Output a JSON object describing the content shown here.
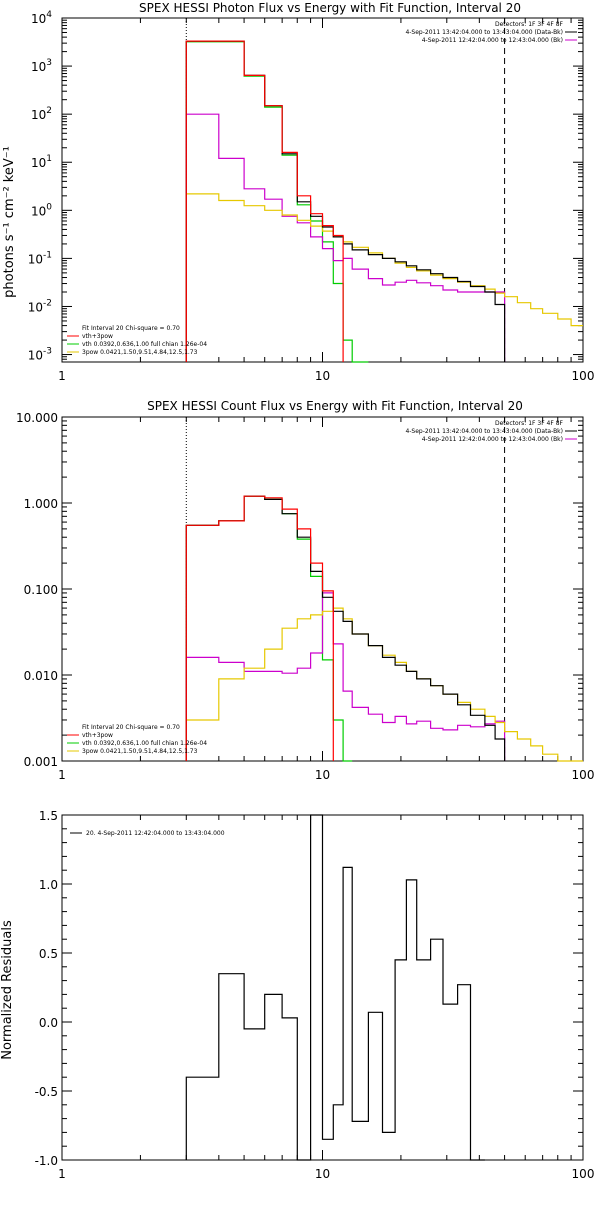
{
  "colors": {
    "background": "#ffffff",
    "axes": "#000000",
    "red": "#ff0000",
    "green": "#00cc00",
    "magenta": "#cc00cc",
    "yellow": "#e6c800",
    "black": "#000000"
  },
  "chart_data": [
    {
      "id": "photon",
      "type": "line",
      "title": "SPEX HESSI Photon Flux vs Energy with Fit Function, Interval 20",
      "xlabel": "",
      "ylabel": "photons s⁻¹ cm⁻² keV⁻¹",
      "xscale": "log",
      "yscale": "log",
      "xlim": [
        1,
        100
      ],
      "ylim": [
        0.0007,
        10000
      ],
      "xticks": [
        {
          "v": 1,
          "label": "1"
        },
        {
          "v": 10,
          "label": "10"
        },
        {
          "v": 100,
          "label": "100"
        }
      ],
      "yticks": [
        {
          "v": 0.001,
          "base": "10",
          "exp": "-3"
        },
        {
          "v": 0.01,
          "base": "10",
          "exp": "-2"
        },
        {
          "v": 0.1,
          "base": "10",
          "exp": "-1"
        },
        {
          "v": 1,
          "base": "10",
          "exp": "0"
        },
        {
          "v": 10,
          "base": "10",
          "exp": "1"
        },
        {
          "v": 100,
          "base": "10",
          "exp": "2"
        },
        {
          "v": 1000,
          "base": "10",
          "exp": "3"
        },
        {
          "v": 10000,
          "base": "10",
          "exp": "4"
        }
      ],
      "vlines": [
        {
          "x": 3.0,
          "style": "dotted"
        },
        {
          "x": 50.0,
          "style": "dashed"
        }
      ],
      "legend_tr": [
        {
          "text": "Detectors: 1F 3F 4F 8F",
          "color": ""
        },
        {
          "text": "4-Sep-2011 13:42:04.000 to 13:43:04.000 (Data-Bk)",
          "color": "#000000"
        },
        {
          "text": "4-Sep-2011 12:42:04.000 to 12:43:04.000 (Bk)",
          "color": "#cc00cc"
        }
      ],
      "legend_bl": [
        {
          "text": "Fit Interval 20   Chi-square = 0.70",
          "color": ""
        },
        {
          "text": "vth+3pow",
          "color": "#ff0000"
        },
        {
          "text": "vth 0.0392,0.636,1.00   full chian 1.26e-04",
          "color": "#00cc00"
        },
        {
          "text": "3pow 0.0421,1.50,9.51,4.84,12.5,1.73",
          "color": "#e6c800"
        }
      ],
      "edges": [
        3,
        4,
        5,
        6,
        7,
        8,
        9,
        10,
        11,
        12,
        13,
        15,
        17,
        19,
        21,
        23,
        26,
        29,
        33,
        37,
        42,
        46,
        50,
        56,
        63,
        70,
        80,
        90,
        100
      ],
      "series": [
        {
          "color": "#00cc00",
          "values": [
            3200,
            3200,
            620,
            140,
            14,
            1.3,
            0.6,
            0.22,
            0.03,
            0.002,
            0.0007
          ]
        },
        {
          "color": "#cc00cc",
          "values": [
            100,
            12,
            2.8,
            1.7,
            0.75,
            0.55,
            0.28,
            0.16,
            0.09,
            0.1,
            0.06,
            0.038,
            0.028,
            0.032,
            0.035,
            0.031,
            0.027,
            0.022,
            0.02,
            0.02,
            0.02,
            0.02
          ]
        },
        {
          "color": "#e6c800",
          "values": [
            2.2,
            1.6,
            1.25,
            1.0,
            0.8,
            0.62,
            0.47,
            0.37,
            0.28,
            0.22,
            0.17,
            0.13,
            0.1,
            0.08,
            0.065,
            0.055,
            0.045,
            0.038,
            0.032,
            0.027,
            0.023,
            0.019,
            0.016,
            0.012,
            0.009,
            0.0072,
            0.0055,
            0.004
          ]
        },
        {
          "color": "#000000",
          "values": [
            3300,
            3300,
            640,
            150,
            15,
            1.5,
            0.75,
            0.45,
            0.28,
            0.2,
            0.15,
            0.12,
            0.1,
            0.085,
            0.07,
            0.058,
            0.048,
            0.04,
            0.033,
            0.026,
            0.02,
            0.011
          ]
        },
        {
          "color": "#ff0000",
          "values": [
            3300,
            3300,
            640,
            150,
            16,
            2.0,
            0.85,
            0.48,
            0.3
          ]
        }
      ]
    },
    {
      "id": "count",
      "type": "line",
      "title": "SPEX HESSI Count Flux vs Energy with Fit Function, Interval 20",
      "xlabel": "",
      "ylabel": "",
      "xscale": "log",
      "yscale": "log",
      "xlim": [
        1,
        100
      ],
      "ylim": [
        0.001,
        10
      ],
      "xticks": [
        {
          "v": 1,
          "label": "1"
        },
        {
          "v": 10,
          "label": "10"
        },
        {
          "v": 100,
          "label": "100"
        }
      ],
      "yticks": [
        {
          "v": 0.001,
          "label": "0.001"
        },
        {
          "v": 0.01,
          "label": "0.010"
        },
        {
          "v": 0.1,
          "label": "0.100"
        },
        {
          "v": 1,
          "label": "1.000"
        },
        {
          "v": 10,
          "label": "10.000"
        }
      ],
      "vlines": [
        {
          "x": 3.0,
          "style": "dotted"
        },
        {
          "x": 50.0,
          "style": "dashed"
        }
      ],
      "legend_tr": [
        {
          "text": "Detectors: 1F 3F 4F 8F",
          "color": ""
        },
        {
          "text": "4-Sep-2011 13:42:04.000 to 13:43:04.000 (Data-Bk)",
          "color": "#000000"
        },
        {
          "text": "4-Sep-2011 12:42:04.000 to 12:43:04.000 (Bk)",
          "color": "#cc00cc"
        }
      ],
      "legend_bl": [
        {
          "text": "Fit Interval 20   Chi-square = 0.70",
          "color": ""
        },
        {
          "text": "vth+3pow",
          "color": "#ff0000"
        },
        {
          "text": "vth 0.0392,0.636,1.00   full chian 1.26e-04",
          "color": "#00cc00"
        },
        {
          "text": "3pow 0.0421,1.50,9.51,4.84,12.5,1.73",
          "color": "#e6c800"
        }
      ],
      "edges": [
        3,
        4,
        5,
        6,
        7,
        8,
        9,
        10,
        11,
        12,
        13,
        15,
        17,
        19,
        21,
        23,
        26,
        29,
        33,
        37,
        42,
        46,
        50,
        56,
        63,
        70,
        80,
        90,
        100
      ],
      "series": [
        {
          "color": "#00cc00",
          "values": [
            0.55,
            0.62,
            1.2,
            1.1,
            0.75,
            0.38,
            0.14,
            0.015,
            0.003,
            0.0009
          ]
        },
        {
          "color": "#cc00cc",
          "values": [
            0.016,
            0.014,
            0.011,
            0.011,
            0.0105,
            0.012,
            0.018,
            0.09,
            0.023,
            0.0065,
            0.0042,
            0.0035,
            0.0028,
            0.0033,
            0.0027,
            0.0029,
            0.0024,
            0.0023,
            0.0026,
            0.0025,
            0.0027,
            0.0029
          ]
        },
        {
          "color": "#e6c800",
          "values": [
            0.003,
            0.009,
            0.012,
            0.02,
            0.035,
            0.045,
            0.05,
            0.055,
            0.06,
            0.045,
            0.03,
            0.022,
            0.017,
            0.014,
            0.011,
            0.009,
            0.0075,
            0.006,
            0.0048,
            0.004,
            0.0033,
            0.0028,
            0.0022,
            0.0018,
            0.0015,
            0.0012,
            0.0009,
            0.0007
          ]
        },
        {
          "color": "#000000",
          "values": [
            0.55,
            0.62,
            1.2,
            1.1,
            0.75,
            0.4,
            0.16,
            0.08,
            0.055,
            0.042,
            0.03,
            0.022,
            0.016,
            0.013,
            0.011,
            0.009,
            0.0075,
            0.006,
            0.0045,
            0.0034,
            0.0026,
            0.0018
          ]
        },
        {
          "color": "#ff0000",
          "values": [
            0.55,
            0.62,
            1.2,
            1.15,
            0.85,
            0.5,
            0.2,
            0.095
          ]
        }
      ]
    },
    {
      "id": "resid",
      "type": "line",
      "title": "",
      "xlabel": "",
      "ylabel": "Normalized Residuals",
      "xscale": "log",
      "yscale": "linear",
      "xlim": [
        1,
        100
      ],
      "ylim": [
        -1.0,
        1.5
      ],
      "xticks": [
        {
          "v": 1,
          "label": "1"
        },
        {
          "v": 10,
          "label": "10"
        },
        {
          "v": 100,
          "label": "100"
        }
      ],
      "yticks": [
        {
          "v": -1.0,
          "label": "-1.0"
        },
        {
          "v": -0.5,
          "label": "-0.5"
        },
        {
          "v": 0.0,
          "label": "0.0"
        },
        {
          "v": 0.5,
          "label": "0.5"
        },
        {
          "v": 1.0,
          "label": "1.0"
        },
        {
          "v": 1.5,
          "label": "1.5"
        }
      ],
      "vlines": [],
      "legend_tr": [],
      "legend_bl": [],
      "legend_tl": [
        {
          "text": "20.  4-Sep-2011 12:42:04.000 to 13:43:04.000",
          "color": "#000000"
        }
      ],
      "edges": [
        3,
        4,
        5,
        6,
        7,
        8,
        9,
        10,
        11,
        12,
        13,
        15,
        17,
        19,
        21,
        23,
        26,
        29,
        33,
        37,
        42
      ],
      "series": [
        {
          "color": "#000000",
          "values": [
            -0.4,
            0.35,
            -0.05,
            0.2,
            0.03,
            -1.0,
            1.5,
            -0.85,
            -0.6,
            1.12,
            -0.72,
            0.07,
            -0.8,
            0.45,
            1.03,
            0.45,
            0.6,
            0.13,
            0.27,
            -1.0
          ]
        }
      ]
    }
  ]
}
